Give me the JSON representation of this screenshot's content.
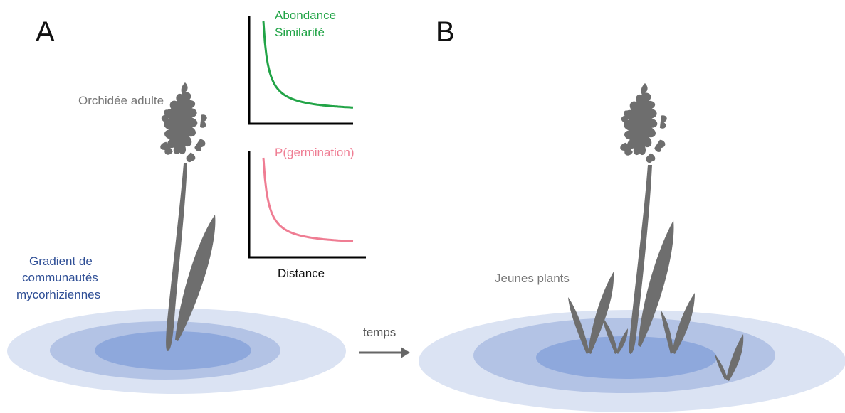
{
  "panels": {
    "a_label": "A",
    "b_label": "B"
  },
  "labels": {
    "adult_orchid": "Orchidée adulte",
    "gradient_line1": "Gradient de",
    "gradient_line2": "communautés",
    "gradient_line3": "mycorhiziennes",
    "time": "temps",
    "seedlings": "Jeunes plants"
  },
  "colors": {
    "plant": "#6e6e6e",
    "ring_outer": "#dbe3f3",
    "ring_middle": "#b3c3e5",
    "ring_inner": "#8ea8dc",
    "green_curve": "#22a447",
    "pink_curve": "#ef7d93",
    "gradient_text": "#2f4f96"
  },
  "chart_data": [
    {
      "type": "line",
      "series": [
        {
          "name": "Abondance",
          "values": []
        },
        {
          "name": "Similarité",
          "values": []
        }
      ],
      "shape": "decreasing-decay",
      "xlabel": "",
      "ylabel": "",
      "color": "#22a447"
    },
    {
      "type": "line",
      "series": [
        {
          "name": "P(germination)",
          "values": []
        }
      ],
      "shape": "decreasing-decay",
      "xlabel": "Distance",
      "ylabel": "",
      "color": "#ef7d93"
    }
  ]
}
